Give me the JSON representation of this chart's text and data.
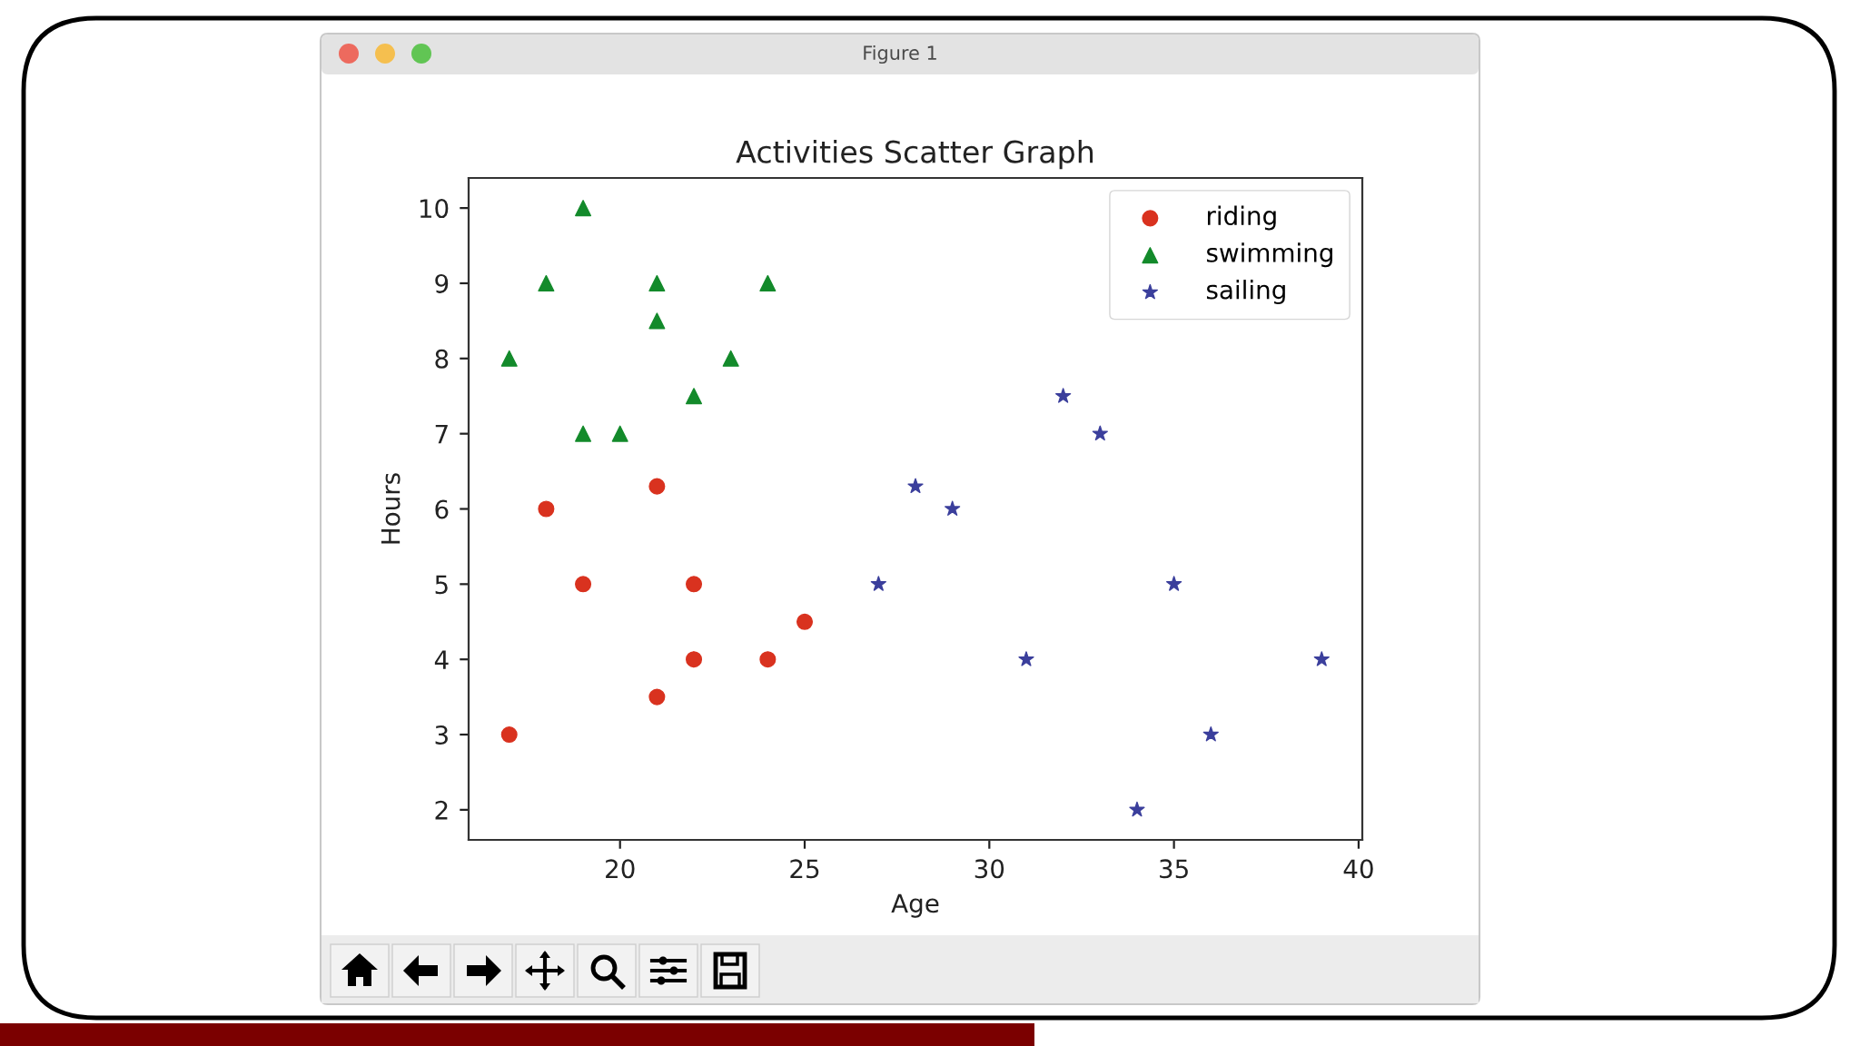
{
  "chart_data": {
    "type": "scatter",
    "title": "Activities Scatter Graph",
    "xlabel": "Age",
    "ylabel": "Hours",
    "annotations": [
      "Figure 1"
    ],
    "series": [
      {
        "name": "riding",
        "color": "#d9321f",
        "marker": "circle",
        "x": [
          17,
          18,
          19,
          21,
          21,
          22,
          22,
          24,
          25
        ],
        "values": [
          3,
          6,
          5,
          6.3,
          3.5,
          5,
          4,
          4,
          4.5
        ]
      },
      {
        "name": "swimming",
        "color": "#138a2b",
        "marker": "triangle",
        "x": [
          17,
          18,
          19,
          19,
          20,
          21,
          21,
          22,
          23,
          24
        ],
        "values": [
          8,
          9,
          10,
          7,
          7,
          9,
          8.5,
          7.5,
          8,
          9
        ]
      },
      {
        "name": "sailing",
        "color": "#3b3f9c",
        "marker": "star",
        "x": [
          27,
          28,
          29,
          31,
          32,
          33,
          34,
          35,
          36,
          39
        ],
        "values": [
          5,
          6.3,
          6,
          4,
          7.5,
          7,
          2,
          5,
          3,
          4
        ]
      }
    ],
    "xlim": [
      15.9,
      40.1
    ],
    "ylim": [
      1.6,
      10.4
    ],
    "xticks": [
      20,
      25,
      30,
      35,
      40
    ],
    "yticks": [
      2,
      3,
      4,
      5,
      6,
      7,
      8,
      9,
      10
    ],
    "legend": "top right"
  }
}
